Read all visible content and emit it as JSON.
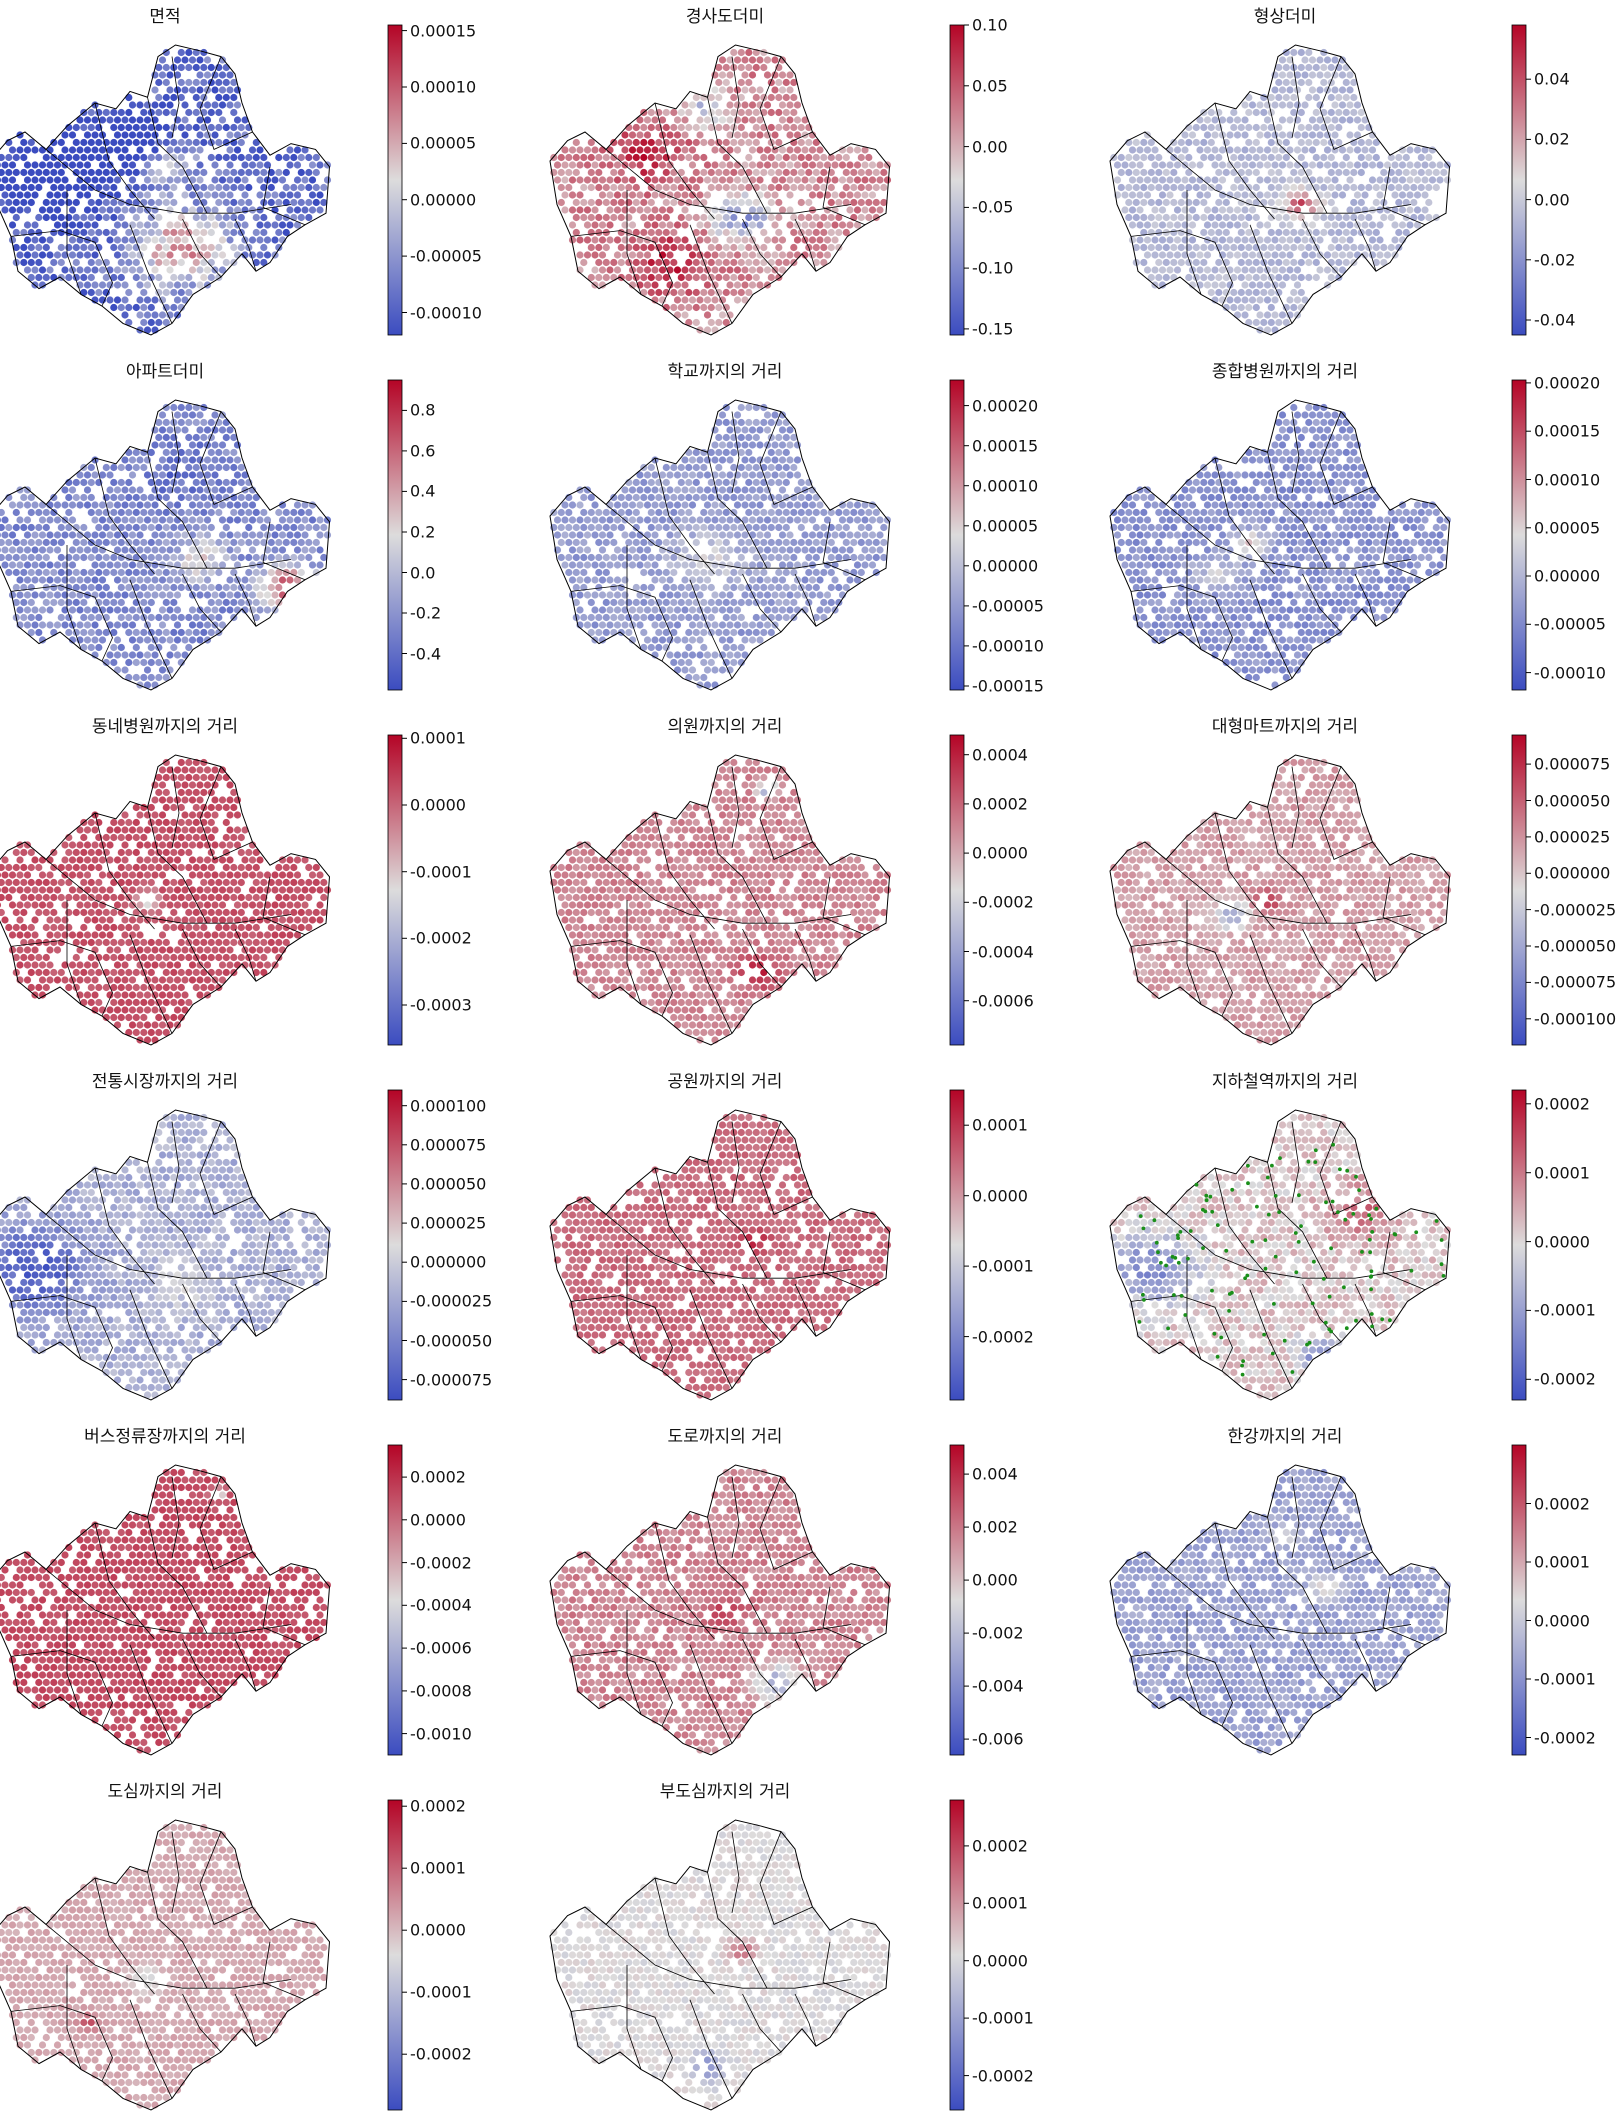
{
  "figure": {
    "colormap": {
      "name": "coolwarm",
      "stops": [
        "#3b4cc0",
        "#dddcdc",
        "#b40426"
      ]
    },
    "map_style": {
      "boundary_color": "#000000",
      "subway_marker_color": "#1a8f1a"
    }
  },
  "chart_data": [
    {
      "type": "heatmap",
      "title": "면적",
      "range": [
        -0.00012,
        0.000155
      ],
      "ticks": [
        {
          "v": 0.00015,
          "label": "0.00015"
        },
        {
          "v": 0.0001,
          "label": "0.00010"
        },
        {
          "v": 5e-05,
          "label": "0.00005"
        },
        {
          "v": 0,
          "label": "0.00000"
        },
        {
          "v": -5e-05,
          "label": "-0.00005"
        },
        {
          "v": -0.0001,
          "label": "-0.00010"
        }
      ],
      "pattern": {
        "base": 0.12,
        "amp": 0.28,
        "hotspots": [
          [
            0.55,
            0.7,
            0.55,
            0.14
          ],
          [
            0.5,
            0.42,
            0.35,
            0.08
          ],
          [
            0.18,
            0.45,
            -0.35,
            0.15
          ],
          [
            0.4,
            0.35,
            -0.4,
            0.1
          ]
        ]
      }
    },
    {
      "type": "heatmap",
      "title": "경사도더미",
      "range": [
        -0.155,
        0.1
      ],
      "ticks": [
        {
          "v": 0.1,
          "label": "0.10"
        },
        {
          "v": 0.05,
          "label": "0.05"
        },
        {
          "v": 0,
          "label": "0.00"
        },
        {
          "v": -0.05,
          "label": "-0.05"
        },
        {
          "v": -0.1,
          "label": "-0.10"
        },
        {
          "v": -0.15,
          "label": "-0.15"
        }
      ],
      "pattern": {
        "base": 0.68,
        "amp": 0.22,
        "hotspots": [
          [
            0.55,
            0.6,
            -0.45,
            0.08
          ],
          [
            0.35,
            0.75,
            0.25,
            0.1
          ],
          [
            0.45,
            0.22,
            -0.3,
            0.06
          ],
          [
            0.28,
            0.38,
            0.25,
            0.1
          ]
        ]
      }
    },
    {
      "type": "heatmap",
      "title": "형상더미",
      "range": [
        -0.045,
        0.058
      ],
      "ticks": [
        {
          "v": 0.04,
          "label": "0.04"
        },
        {
          "v": 0.02,
          "label": "0.02"
        },
        {
          "v": 0,
          "label": "0.00"
        },
        {
          "v": -0.02,
          "label": "-0.02"
        },
        {
          "v": -0.04,
          "label": "-0.04"
        }
      ],
      "pattern": {
        "base": 0.38,
        "amp": 0.12,
        "hotspots": [
          [
            0.55,
            0.55,
            0.45,
            0.05
          ]
        ]
      }
    },
    {
      "type": "heatmap",
      "title": "아파트더미",
      "range": [
        -0.58,
        0.95
      ],
      "ticks": [
        {
          "v": 0.8,
          "label": "0.8"
        },
        {
          "v": 0.6,
          "label": "0.6"
        },
        {
          "v": 0.4,
          "label": "0.4"
        },
        {
          "v": 0.2,
          "label": "0.2"
        },
        {
          "v": 0,
          "label": "0.0"
        },
        {
          "v": -0.2,
          "label": "-0.2"
        },
        {
          "v": -0.4,
          "label": "-0.4"
        }
      ],
      "pattern": {
        "base": 0.22,
        "amp": 0.18,
        "hotspots": [
          [
            0.85,
            0.65,
            0.6,
            0.08
          ],
          [
            0.6,
            0.55,
            0.3,
            0.08
          ],
          [
            0.55,
            0.25,
            -0.1,
            0.1
          ]
        ]
      }
    },
    {
      "type": "heatmap",
      "title": "학교까지의 거리",
      "range": [
        -0.000155,
        0.000232
      ],
      "ticks": [
        {
          "v": 0.0002,
          "label": "0.00020"
        },
        {
          "v": 0.00015,
          "label": "0.00015"
        },
        {
          "v": 0.0001,
          "label": "0.00010"
        },
        {
          "v": 5e-05,
          "label": "0.00005"
        },
        {
          "v": 0,
          "label": "0.00000"
        },
        {
          "v": -5e-05,
          "label": "-0.00005"
        },
        {
          "v": -0.0001,
          "label": "-0.00010"
        },
        {
          "v": -0.00015,
          "label": "-0.00015"
        }
      ],
      "pattern": {
        "base": 0.28,
        "amp": 0.14,
        "hotspots": [
          [
            0.45,
            0.55,
            0.2,
            0.1
          ],
          [
            0.8,
            0.3,
            0.45,
            0.03
          ]
        ]
      }
    },
    {
      "type": "heatmap",
      "title": "종합병원까지의 거리",
      "range": [
        -0.000118,
        0.000203
      ],
      "ticks": [
        {
          "v": 0.0002,
          "label": "0.00020"
        },
        {
          "v": 0.00015,
          "label": "0.00015"
        },
        {
          "v": 0.0001,
          "label": "0.00010"
        },
        {
          "v": 5e-05,
          "label": "0.00005"
        },
        {
          "v": 0,
          "label": "0.00000"
        },
        {
          "v": -5e-05,
          "label": "-0.00005"
        },
        {
          "v": -0.0001,
          "label": "-0.00010"
        }
      ],
      "pattern": {
        "base": 0.25,
        "amp": 0.14,
        "hotspots": [
          [
            0.4,
            0.5,
            0.35,
            0.05
          ],
          [
            0.3,
            0.6,
            0.2,
            0.06
          ]
        ]
      }
    },
    {
      "type": "heatmap",
      "title": "동네병원까지의 거리",
      "range": [
        -0.00036,
        0.000105
      ],
      "ticks": [
        {
          "v": 0.0001,
          "label": "0.0001"
        },
        {
          "v": 0,
          "label": "0.0000"
        },
        {
          "v": -0.0001,
          "label": "-0.0001"
        },
        {
          "v": -0.0002,
          "label": "-0.0002"
        },
        {
          "v": -0.0003,
          "label": "-0.0003"
        }
      ],
      "pattern": {
        "base": 0.82,
        "amp": 0.08,
        "hotspots": [
          [
            0.45,
            0.5,
            -0.5,
            0.03
          ]
        ]
      }
    },
    {
      "type": "heatmap",
      "title": "의원까지의 거리",
      "range": [
        -0.00078,
        0.00048
      ],
      "ticks": [
        {
          "v": 0.0004,
          "label": "0.0004"
        },
        {
          "v": 0.0002,
          "label": "0.0002"
        },
        {
          "v": 0,
          "label": "0.0000"
        },
        {
          "v": -0.0002,
          "label": "-0.0002"
        },
        {
          "v": -0.0004,
          "label": "-0.0004"
        },
        {
          "v": -0.0006,
          "label": "-0.0006"
        }
      ],
      "pattern": {
        "base": 0.7,
        "amp": 0.1,
        "hotspots": [
          [
            0.6,
            0.75,
            0.22,
            0.06
          ],
          [
            0.62,
            0.12,
            -0.4,
            0.03
          ]
        ]
      }
    },
    {
      "type": "heatmap",
      "title": "대형마트까지의 거리",
      "range": [
        -0.000118,
        9.5e-05
      ],
      "ticks": [
        {
          "v": 7.5e-05,
          "label": "0.000075"
        },
        {
          "v": 5e-05,
          "label": "0.000050"
        },
        {
          "v": 2.5e-05,
          "label": "0.000025"
        },
        {
          "v": 0,
          "label": "0.000000"
        },
        {
          "v": -2.5e-05,
          "label": "-0.000025"
        },
        {
          "v": -5e-05,
          "label": "-0.000050"
        },
        {
          "v": -7.5e-05,
          "label": "-0.000075"
        },
        {
          "v": -0.0001,
          "label": "-0.000100"
        }
      ],
      "pattern": {
        "base": 0.64,
        "amp": 0.1,
        "hotspots": [
          [
            0.35,
            0.55,
            -0.35,
            0.05
          ],
          [
            0.45,
            0.5,
            0.25,
            0.04
          ]
        ]
      }
    },
    {
      "type": "heatmap",
      "title": "전통시장까지의 거리",
      "range": [
        -8.8e-05,
        0.00011
      ],
      "ticks": [
        {
          "v": 0.0001,
          "label": "0.000100"
        },
        {
          "v": 7.5e-05,
          "label": "0.000075"
        },
        {
          "v": 5e-05,
          "label": "0.000050"
        },
        {
          "v": 2.5e-05,
          "label": "0.000025"
        },
        {
          "v": 0,
          "label": "0.000000"
        },
        {
          "v": -2.5e-05,
          "label": "-0.000025"
        },
        {
          "v": -5e-05,
          "label": "-0.000050"
        },
        {
          "v": -7.5e-05,
          "label": "-0.000075"
        }
      ],
      "pattern": {
        "base": 0.35,
        "amp": 0.14,
        "hotspots": [
          [
            0.12,
            0.55,
            -0.3,
            0.15
          ],
          [
            0.55,
            0.6,
            0.1,
            0.1
          ]
        ]
      }
    },
    {
      "type": "heatmap",
      "title": "공원까지의 거리",
      "range": [
        -0.00029,
        0.00015
      ],
      "ticks": [
        {
          "v": 0.0001,
          "label": "0.0001"
        },
        {
          "v": 0,
          "label": "0.0000"
        },
        {
          "v": -0.0001,
          "label": "-0.0001"
        },
        {
          "v": -0.0002,
          "label": "-0.0002"
        }
      ],
      "pattern": {
        "base": 0.76,
        "amp": 0.08,
        "hotspots": [
          [
            0.58,
            0.45,
            0.18,
            0.04
          ]
        ]
      }
    },
    {
      "type": "heatmap",
      "title": "지하철역까지의 거리",
      "range": [
        -0.00023,
        0.00022
      ],
      "ticks": [
        {
          "v": 0.0002,
          "label": "0.0002"
        },
        {
          "v": 0.0001,
          "label": "0.0001"
        },
        {
          "v": 0,
          "label": "0.0000"
        },
        {
          "v": -0.0001,
          "label": "-0.0001"
        },
        {
          "v": -0.0002,
          "label": "-0.0002"
        }
      ],
      "pattern": {
        "base": 0.55,
        "amp": 0.16,
        "hotspots": [
          [
            0.12,
            0.55,
            -0.35,
            0.12
          ],
          [
            0.6,
            0.85,
            -0.35,
            0.06
          ],
          [
            0.72,
            0.35,
            0.2,
            0.1
          ]
        ]
      },
      "subway": true
    },
    {
      "type": "heatmap",
      "title": "버스정류장까지의 거리",
      "range": [
        -0.0011,
        0.00035
      ],
      "ticks": [
        {
          "v": 0.0002,
          "label": "0.0002"
        },
        {
          "v": 0,
          "label": "0.0000"
        },
        {
          "v": -0.0002,
          "label": "-0.0002"
        },
        {
          "v": -0.0004,
          "label": "-0.0004"
        },
        {
          "v": -0.0006,
          "label": "-0.0006"
        },
        {
          "v": -0.0008,
          "label": "-0.0008"
        },
        {
          "v": -0.001,
          "label": "-0.0010"
        }
      ],
      "pattern": {
        "base": 0.83,
        "amp": 0.07,
        "hotspots": [
          [
            0.65,
            0.1,
            -0.5,
            0.02
          ]
        ]
      }
    },
    {
      "type": "heatmap",
      "title": "도로까지의 거리",
      "range": [
        -0.0066,
        0.0051
      ],
      "ticks": [
        {
          "v": 0.004,
          "label": "0.004"
        },
        {
          "v": 0.002,
          "label": "0.002"
        },
        {
          "v": 0,
          "label": "0.000"
        },
        {
          "v": -0.002,
          "label": "-0.002"
        },
        {
          "v": -0.004,
          "label": "-0.004"
        },
        {
          "v": -0.006,
          "label": "-0.006"
        }
      ],
      "pattern": {
        "base": 0.7,
        "amp": 0.12,
        "hotspots": [
          [
            0.65,
            0.75,
            -0.35,
            0.07
          ],
          [
            0.5,
            0.5,
            0.15,
            0.06
          ]
        ]
      }
    },
    {
      "type": "heatmap",
      "title": "한강까지의 거리",
      "range": [
        -0.00023,
        0.0003
      ],
      "ticks": [
        {
          "v": 0.0002,
          "label": "0.0002"
        },
        {
          "v": 0.0001,
          "label": "0.0001"
        },
        {
          "v": 0,
          "label": "0.0000"
        },
        {
          "v": -0.0001,
          "label": "-0.0001"
        },
        {
          "v": -0.0002,
          "label": "-0.0002"
        }
      ],
      "pattern": {
        "base": 0.3,
        "amp": 0.12,
        "hotspots": [
          [
            0.62,
            0.42,
            0.22,
            0.05
          ],
          [
            0.5,
            0.25,
            0.12,
            0.05
          ]
        ]
      }
    },
    {
      "type": "heatmap",
      "title": "도심까지의 거리",
      "range": [
        -0.00029,
        0.00021
      ],
      "ticks": [
        {
          "v": 0.0002,
          "label": "0.0002"
        },
        {
          "v": 0.0001,
          "label": "0.0001"
        },
        {
          "v": 0,
          "label": "0.0000"
        },
        {
          "v": -0.0001,
          "label": "-0.0001"
        },
        {
          "v": -0.0002,
          "label": "-0.0002"
        }
      ],
      "pattern": {
        "base": 0.62,
        "amp": 0.06,
        "hotspots": [
          [
            0.28,
            0.7,
            0.2,
            0.03
          ],
          [
            0.45,
            0.55,
            -0.15,
            0.05
          ]
        ]
      }
    },
    {
      "type": "heatmap",
      "title": "부도심까지의 거리",
      "range": [
        -0.00026,
        0.00028
      ],
      "ticks": [
        {
          "v": 0.0002,
          "label": "0.0002"
        },
        {
          "v": 0.0001,
          "label": "0.0001"
        },
        {
          "v": 0,
          "label": "0.0000"
        },
        {
          "v": -0.0001,
          "label": "-0.0001"
        },
        {
          "v": -0.0002,
          "label": "-0.0002"
        }
      ],
      "pattern": {
        "base": 0.5,
        "amp": 0.08,
        "hotspots": [
          [
            0.45,
            0.85,
            -0.25,
            0.05
          ],
          [
            0.55,
            0.45,
            0.25,
            0.04
          ]
        ]
      }
    }
  ]
}
